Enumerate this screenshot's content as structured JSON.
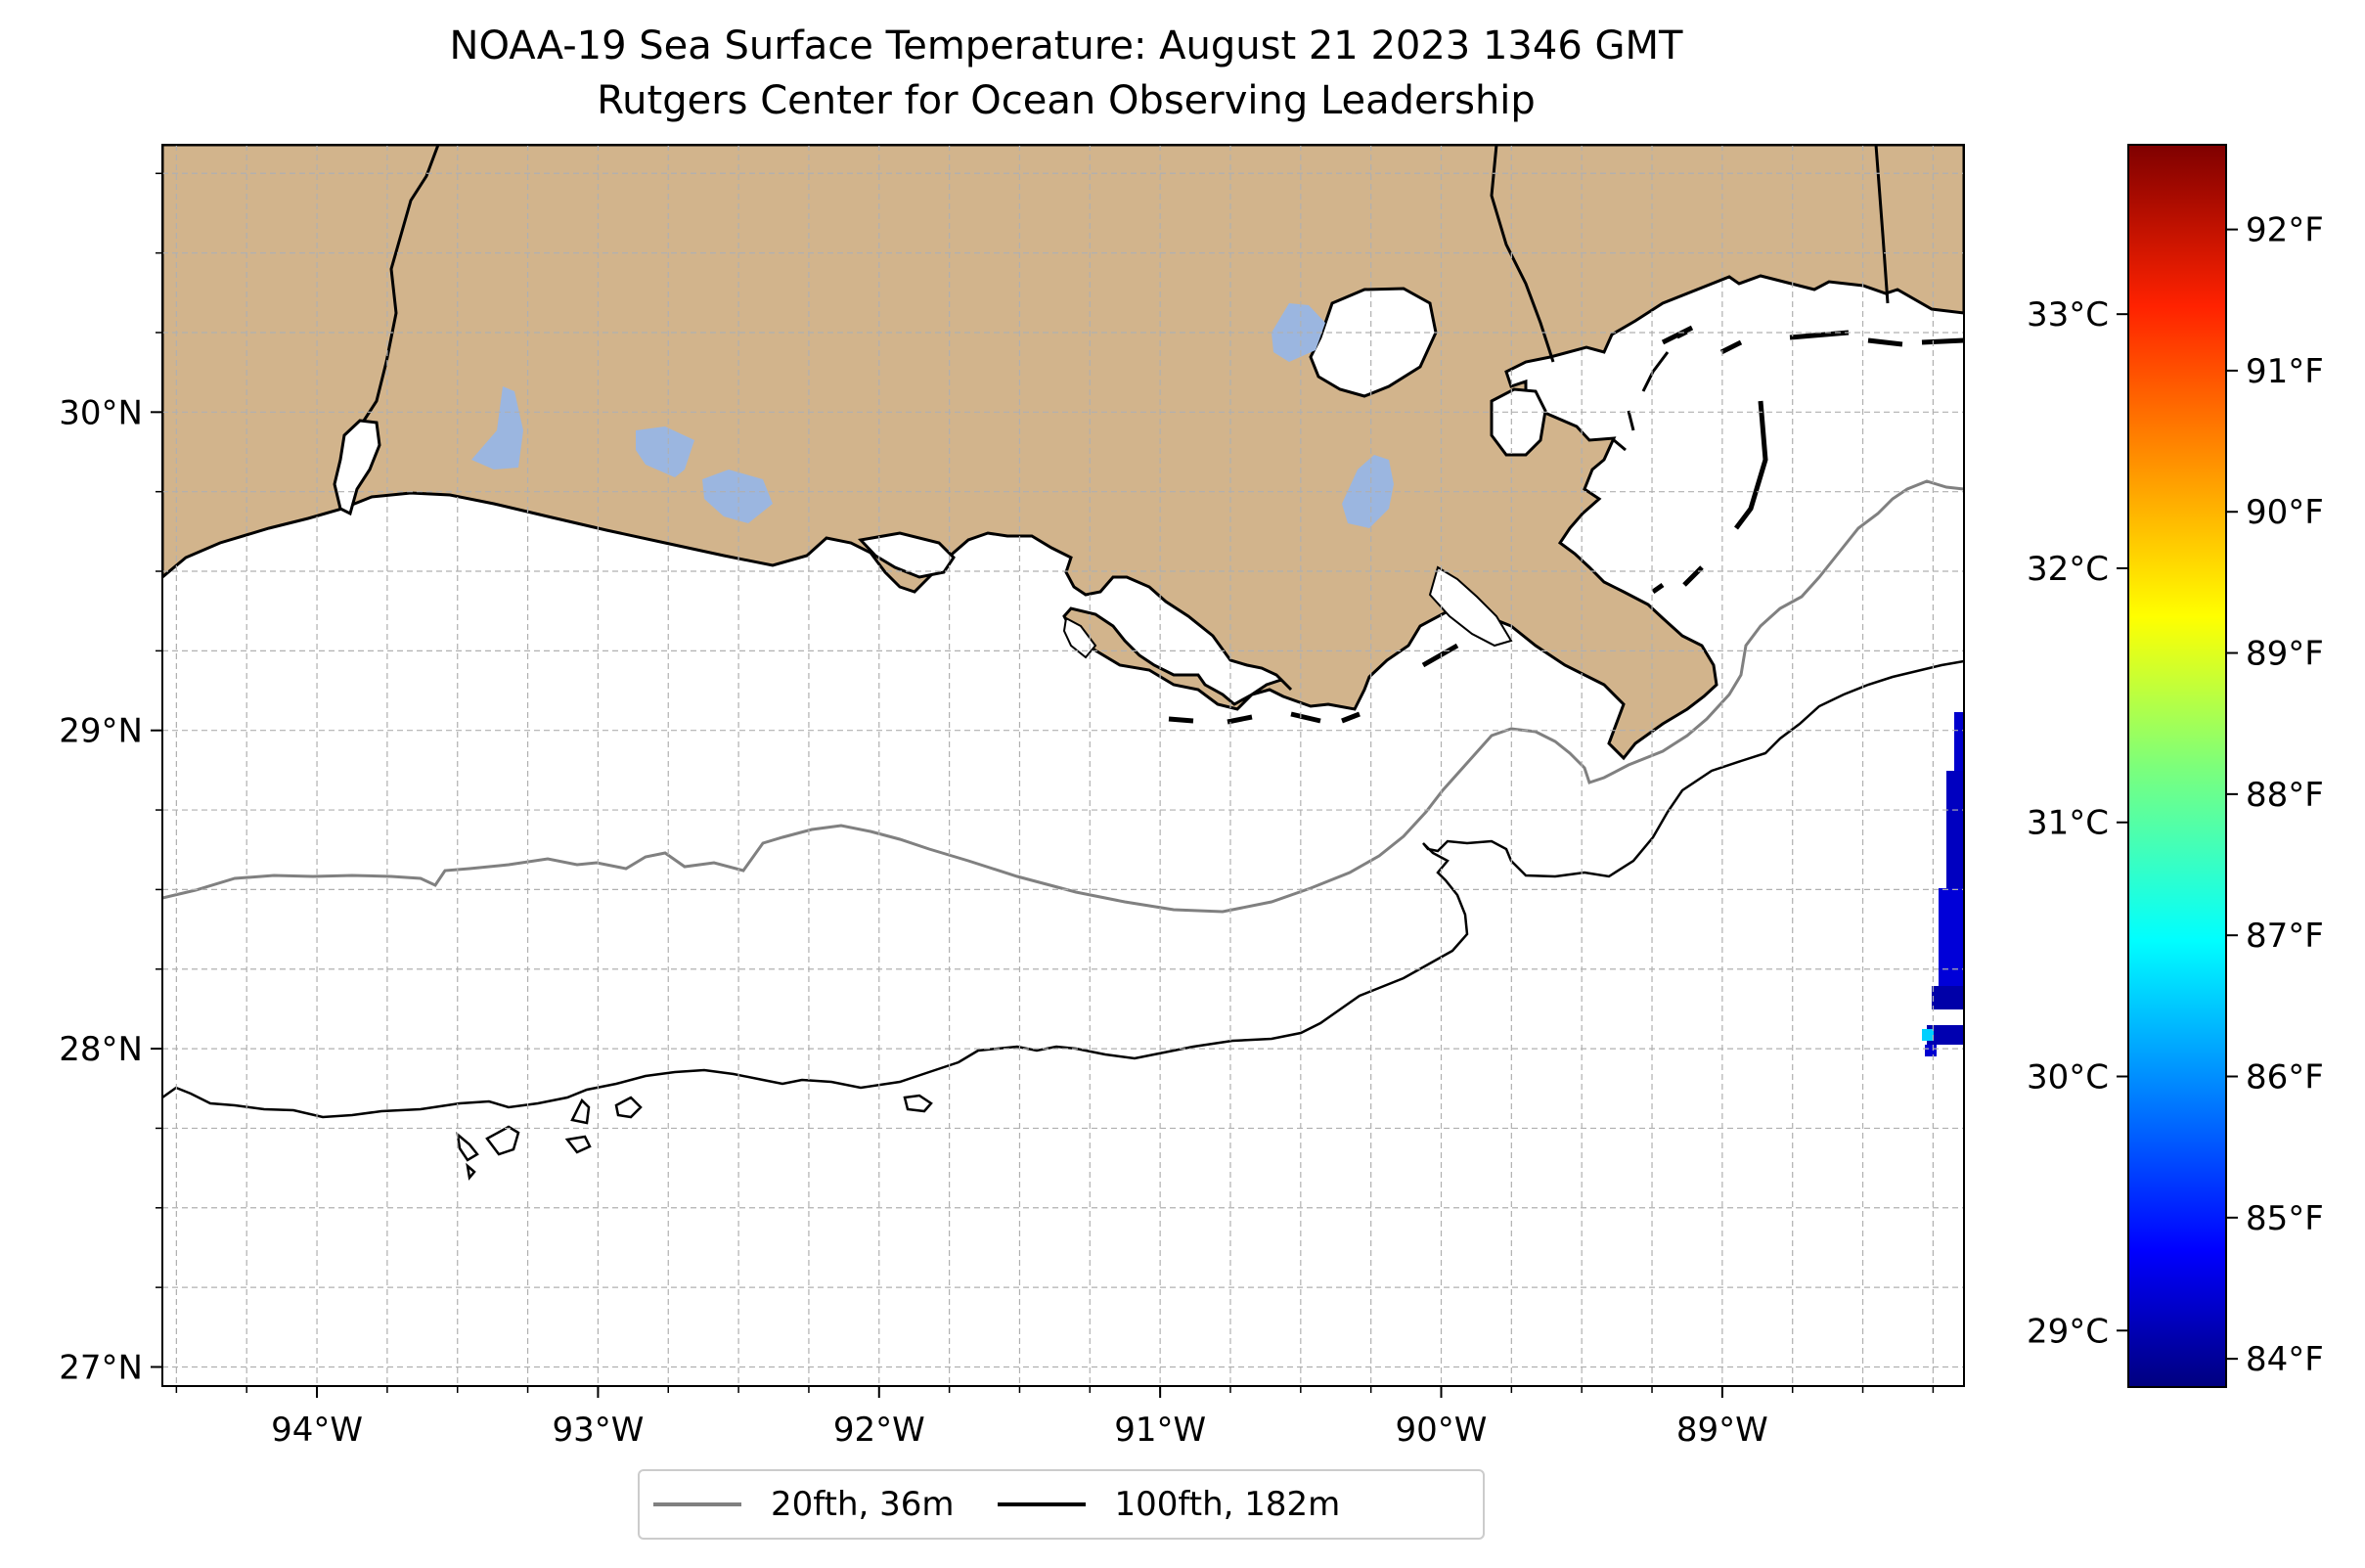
{
  "title": "NOAA-19 Sea Surface Temperature: August 21 2023 1346 GMT",
  "subtitle": "Rutgers Center for Ocean Observing Leadership",
  "map": {
    "lon_range": [
      -94.55,
      -88.14
    ],
    "lat_range": [
      26.94,
      30.84
    ],
    "lon_ticks": [
      -94,
      -93,
      -92,
      -91,
      -90,
      -89
    ],
    "lon_tick_labels": [
      "94°W",
      "93°W",
      "92°W",
      "91°W",
      "90°W",
      "89°W"
    ],
    "lat_ticks": [
      27,
      28,
      29,
      30
    ],
    "lat_tick_labels": [
      "27°N",
      "28°N",
      "29°N",
      "30°N"
    ],
    "land_color": "#d2b48c",
    "lake_color": "#9bb6e0",
    "grid": "dashed"
  },
  "colorbar": {
    "colormap": "jet",
    "range_f": [
      83.8,
      92.6
    ],
    "f_ticks": [
      84,
      85,
      86,
      87,
      88,
      89,
      90,
      91,
      92
    ],
    "f_tick_labels": [
      "84°F",
      "85°F",
      "86°F",
      "87°F",
      "88°F",
      "89°F",
      "90°F",
      "91°F",
      "92°F"
    ],
    "c_ticks": [
      29,
      30,
      31,
      32,
      33
    ],
    "c_tick_labels": [
      "29°C",
      "30°C",
      "31°C",
      "32°C",
      "33°C"
    ]
  },
  "legend": {
    "items": [
      {
        "label": "20fth, 36m",
        "color": "#808080"
      },
      {
        "label": "100fth, 182m",
        "color": "#000000"
      }
    ]
  }
}
